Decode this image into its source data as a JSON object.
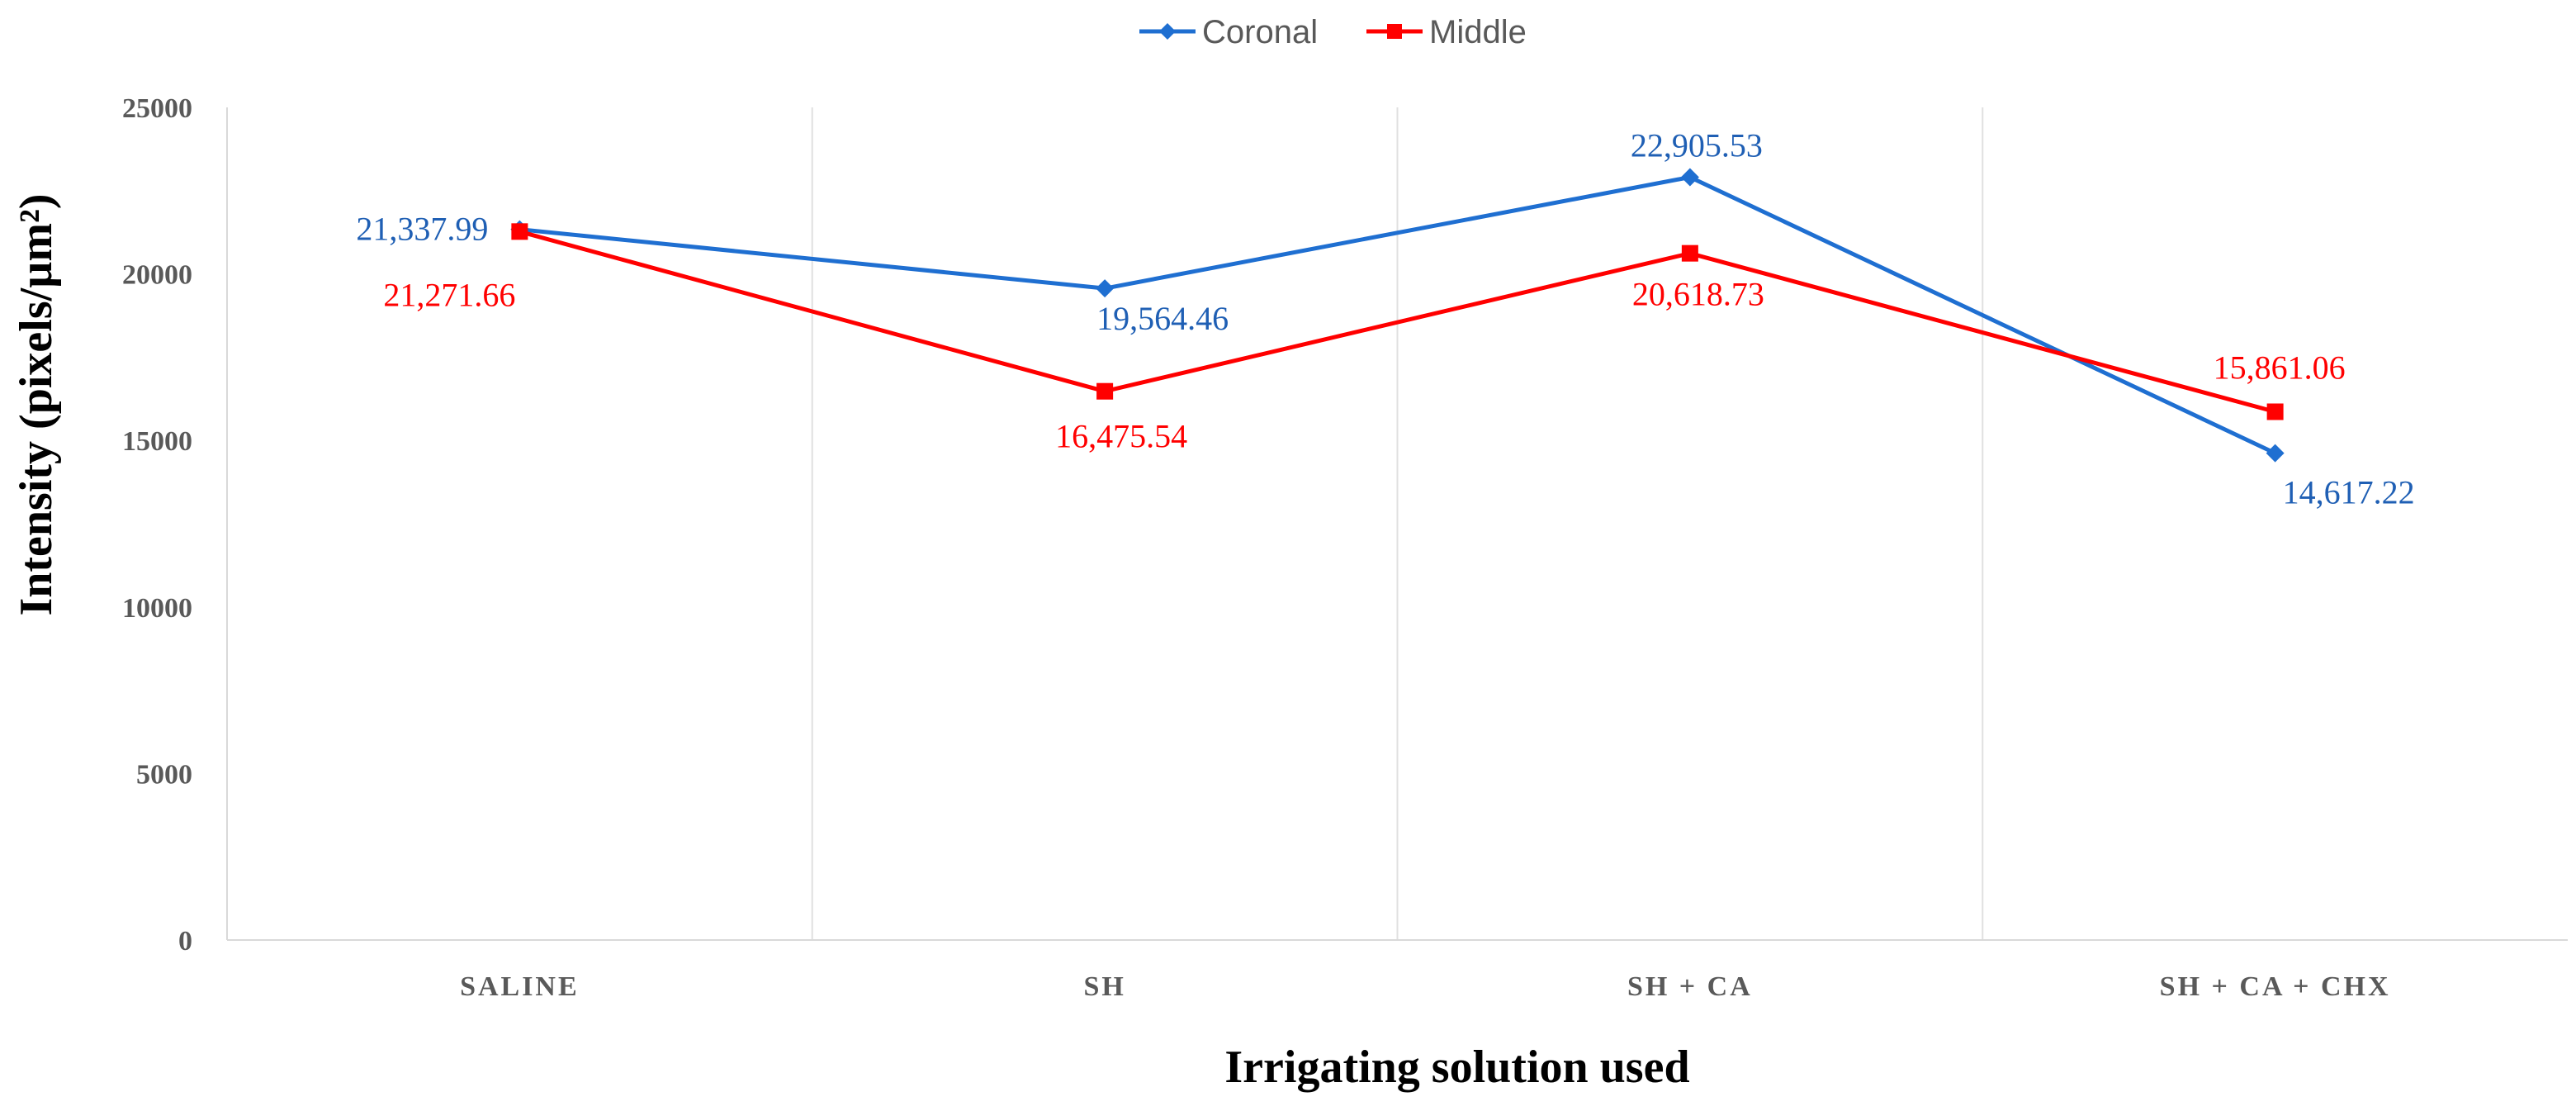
{
  "chart_data": {
    "type": "line",
    "categories": [
      "SALINE",
      "SH",
      "SH + CA",
      "SH + CA + CHX"
    ],
    "series": [
      {
        "name": "Coronal",
        "color": "#1f6fd1",
        "marker": "diamond",
        "values": [
          21337.99,
          19564.46,
          22905.53,
          14617.22
        ],
        "labels": [
          "21,337.99",
          "19,564.46",
          "22,905.53",
          "14,617.22"
        ]
      },
      {
        "name": "Middle",
        "color": "#ff0000",
        "marker": "square",
        "values": [
          21271.66,
          16475.54,
          20618.73,
          15861.06
        ],
        "labels": [
          "21,271.66",
          "16,475.54",
          "20,618.73",
          "15,861.06"
        ]
      }
    ],
    "yticks": [
      0,
      5000,
      10000,
      15000,
      20000,
      25000
    ],
    "ylim": [
      0,
      25000
    ],
    "xlabel": "Irrigating solution used",
    "ylabel": "Intensity (pixels/µm²)",
    "legend_position": "top-center",
    "grid": "vertical category separators"
  }
}
